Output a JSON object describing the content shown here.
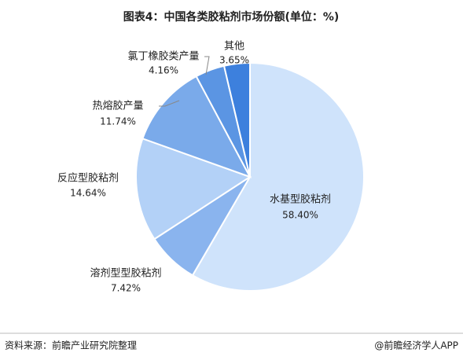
{
  "chart_data": {
    "type": "pie",
    "title": "图表4：中国各类胶粘剂市场份额(单位：%)",
    "categories": [
      "水基型胶粘剂",
      "溶剂型型胶粘剂",
      "反应型胶粘剂",
      "热熔胶产量",
      "氯丁橡胶类产量",
      "其他"
    ],
    "values": [
      58.4,
      7.42,
      14.64,
      11.74,
      4.16,
      3.65
    ],
    "value_labels": [
      "58.40%",
      "7.42%",
      "14.64%",
      "11.74%",
      "4.16%",
      "3.65%"
    ],
    "colors": [
      "#cfe3fb",
      "#8ab4ee",
      "#b3d1f7",
      "#7aaaea",
      "#5b95e3",
      "#3d80dd"
    ]
  },
  "footer": {
    "source": "资料来源：前瞻产业研究院整理",
    "brand": "@前瞻经济学人APP"
  }
}
